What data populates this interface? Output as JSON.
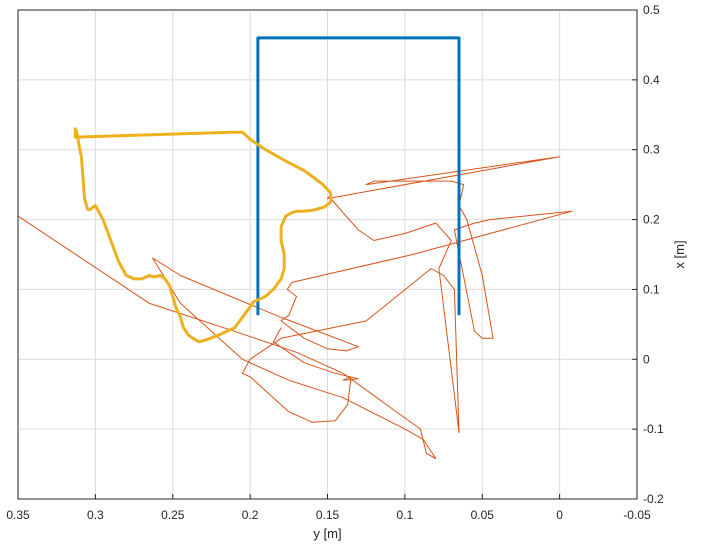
{
  "chart_data": {
    "type": "line",
    "title": "",
    "xlabel": "y [m]",
    "ylabel": "x [m]",
    "xlim": [
      0.35,
      -0.05
    ],
    "ylim": [
      -0.2,
      0.5
    ],
    "x_reversed": true,
    "y_axis_side": "right",
    "grid": true,
    "xticks": [
      0.35,
      0.3,
      0.25,
      0.2,
      0.15,
      0.1,
      0.05,
      0,
      -0.05
    ],
    "xtick_labels": [
      "0.35",
      "0.3",
      "0.25",
      "0.2",
      "0.15",
      "0.1",
      "0.05",
      "0",
      "-0.05"
    ],
    "yticks": [
      0.5,
      0.4,
      0.3,
      0.2,
      0.1,
      0,
      -0.1,
      -0.2
    ],
    "ytick_labels": [
      "0.5",
      "0.4",
      "0.3",
      "0.2",
      "0.1",
      "0",
      "-0.1",
      "-0.2"
    ],
    "series": [
      {
        "color": "#D95319",
        "line_width": 1,
        "points": [
          [
            0.35,
            0.205
          ],
          [
            0.265,
            0.08
          ],
          [
            0.21,
            0.04
          ],
          [
            0.17,
            0.01
          ],
          [
            0.14,
            -0.02
          ],
          [
            0.09,
            -0.1
          ],
          [
            0.086,
            -0.135
          ],
          [
            0.08,
            -0.142
          ],
          [
            0.088,
            -0.115
          ],
          [
            0.1,
            -0.1
          ],
          [
            0.14,
            -0.055
          ],
          [
            0.175,
            -0.03
          ],
          [
            0.205,
            0.0
          ],
          [
            0.225,
            0.04
          ],
          [
            0.245,
            0.08
          ],
          [
            0.263,
            0.145
          ],
          [
            0.245,
            0.12
          ],
          [
            0.18,
            0.06
          ],
          [
            0.13,
            0.018
          ],
          [
            0.138,
            0.012
          ],
          [
            0.15,
            0.015
          ],
          [
            0.165,
            0.03
          ],
          [
            0.18,
            0.055
          ],
          [
            0.175,
            0.063
          ],
          [
            0.17,
            0.09
          ],
          [
            0.176,
            0.1
          ],
          [
            0.173,
            0.11
          ],
          [
            0.095,
            0.15
          ],
          [
            -0.008,
            0.212
          ],
          [
            0.045,
            0.2
          ],
          [
            0.055,
            0.195
          ],
          [
            0.062,
            0.19
          ],
          [
            0.068,
            0.185
          ],
          [
            0.055,
            0.04
          ],
          [
            0.05,
            0.03
          ],
          [
            0.043,
            0.03
          ],
          [
            0.05,
            0.12
          ],
          [
            0.06,
            0.2
          ],
          [
            0.065,
            0.22
          ],
          [
            0.062,
            0.25
          ],
          [
            0.07,
            0.255
          ],
          [
            0.12,
            0.255
          ],
          [
            0.125,
            0.25
          ],
          [
            0.0,
            0.29
          ],
          [
            0.15,
            0.23
          ],
          [
            0.148,
            0.235
          ],
          [
            0.147,
            0.228
          ],
          [
            0.14,
            0.21
          ],
          [
            0.13,
            0.185
          ],
          [
            0.12,
            0.17
          ],
          [
            0.1,
            0.18
          ],
          [
            0.08,
            0.195
          ],
          [
            0.07,
            0.17
          ],
          [
            0.075,
            0.145
          ],
          [
            0.078,
            0.13
          ],
          [
            0.065,
            -0.105
          ],
          [
            0.068,
            0.1
          ],
          [
            0.075,
            0.12
          ],
          [
            0.083,
            0.13
          ],
          [
            0.125,
            0.055
          ],
          [
            0.18,
            0.03
          ],
          [
            0.2,
            0.0
          ],
          [
            0.205,
            -0.02
          ],
          [
            0.2,
            -0.025
          ],
          [
            0.19,
            -0.045
          ],
          [
            0.175,
            -0.075
          ],
          [
            0.16,
            -0.09
          ],
          [
            0.145,
            -0.088
          ],
          [
            0.137,
            -0.065
          ],
          [
            0.135,
            -0.03
          ],
          [
            0.135,
            -0.025
          ],
          [
            0.14,
            -0.03
          ],
          [
            0.13,
            -0.028
          ],
          [
            0.145,
            -0.02
          ],
          [
            0.165,
            -0.005
          ],
          [
            0.185,
            0.025
          ],
          [
            0.18,
            0.045
          ]
        ]
      },
      {
        "color": "#0072BD",
        "line_width": 3,
        "points": [
          [
            0.195,
            0.065
          ],
          [
            0.195,
            0.46
          ],
          [
            0.065,
            0.46
          ],
          [
            0.065,
            0.065
          ]
        ]
      },
      {
        "color": "#EDB120",
        "line_width": 3,
        "points": [
          [
            0.212,
            0.325
          ],
          [
            0.205,
            0.325
          ],
          [
            0.2,
            0.315
          ],
          [
            0.19,
            0.3
          ],
          [
            0.178,
            0.285
          ],
          [
            0.165,
            0.27
          ],
          [
            0.16,
            0.262
          ],
          [
            0.153,
            0.25
          ],
          [
            0.148,
            0.238
          ],
          [
            0.148,
            0.225
          ],
          [
            0.152,
            0.218
          ],
          [
            0.16,
            0.213
          ],
          [
            0.167,
            0.212
          ],
          [
            0.17,
            0.212
          ],
          [
            0.173,
            0.21
          ],
          [
            0.177,
            0.205
          ],
          [
            0.18,
            0.19
          ],
          [
            0.18,
            0.17
          ],
          [
            0.178,
            0.15
          ],
          [
            0.178,
            0.13
          ],
          [
            0.18,
            0.115
          ],
          [
            0.185,
            0.1
          ],
          [
            0.19,
            0.09
          ],
          [
            0.195,
            0.085
          ],
          [
            0.198,
            0.082
          ],
          [
            0.2,
            0.075
          ],
          [
            0.205,
            0.06
          ],
          [
            0.21,
            0.045
          ],
          [
            0.215,
            0.04
          ],
          [
            0.22,
            0.035
          ],
          [
            0.228,
            0.028
          ],
          [
            0.233,
            0.025
          ],
          [
            0.237,
            0.03
          ],
          [
            0.24,
            0.035
          ],
          [
            0.243,
            0.045
          ],
          [
            0.245,
            0.06
          ],
          [
            0.248,
            0.075
          ],
          [
            0.25,
            0.09
          ],
          [
            0.252,
            0.105
          ],
          [
            0.255,
            0.115
          ],
          [
            0.258,
            0.12
          ],
          [
            0.262,
            0.118
          ],
          [
            0.265,
            0.12
          ],
          [
            0.27,
            0.115
          ],
          [
            0.275,
            0.115
          ],
          [
            0.28,
            0.12
          ],
          [
            0.285,
            0.14
          ],
          [
            0.29,
            0.17
          ],
          [
            0.295,
            0.2
          ],
          [
            0.3,
            0.22
          ],
          [
            0.302,
            0.217
          ],
          [
            0.303,
            0.215
          ],
          [
            0.304,
            0.214
          ],
          [
            0.305,
            0.215
          ],
          [
            0.307,
            0.23
          ],
          [
            0.308,
            0.26
          ],
          [
            0.309,
            0.29
          ],
          [
            0.31,
            0.3
          ],
          [
            0.312,
            0.325
          ],
          [
            0.313,
            0.33
          ],
          [
            0.313,
            0.318
          ],
          [
            0.212,
            0.325
          ]
        ]
      }
    ]
  }
}
